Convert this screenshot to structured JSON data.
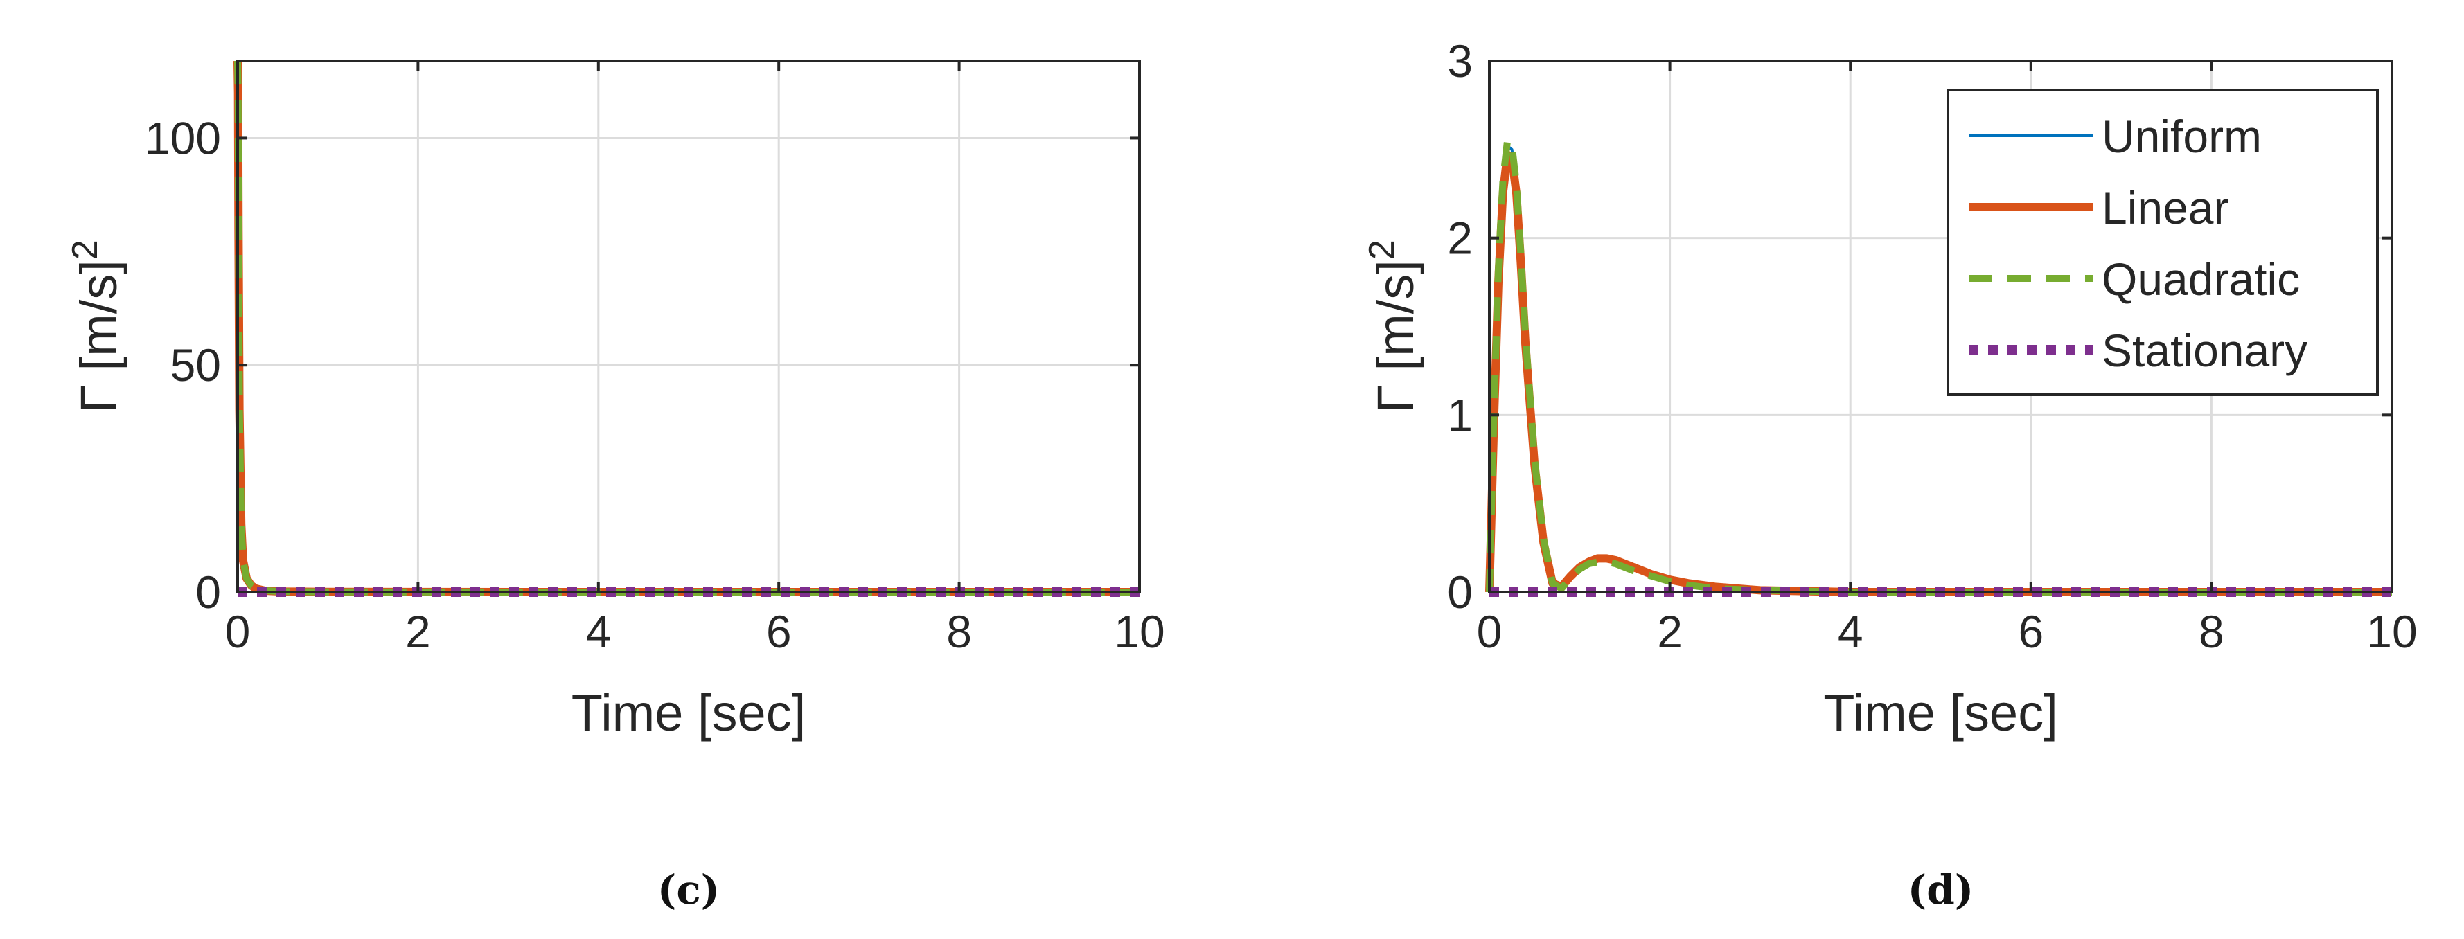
{
  "colors": {
    "uniform": "#0072BD",
    "linear": "#D95319",
    "quadratic": "#77AC30",
    "stationary": "#7E2F8E",
    "grid": "#dcdcdc",
    "axis": "#262626",
    "text": "#262626"
  },
  "chart_data": [
    {
      "type": "line",
      "panel_label": "(c)",
      "xlabel": "Time [sec]",
      "ylabel": "Γ [m/s]",
      "ylabel_superscript": "2",
      "xlim": [
        0,
        10
      ],
      "ylim": [
        0,
        117
      ],
      "xticks": [
        0,
        2,
        4,
        6,
        8,
        10
      ],
      "yticks": [
        0,
        50,
        100
      ],
      "xtick_labels": [
        "0",
        "2",
        "4",
        "6",
        "8",
        "10"
      ],
      "ytick_labels": [
        "0",
        "50",
        "100"
      ],
      "grid": true,
      "legend": false,
      "series": [
        {
          "key": "uniform",
          "style": "solid-thin",
          "x": [
            0,
            0.005,
            0.01,
            0.02,
            0.04,
            0.06,
            0.1,
            0.15,
            0.2,
            0.3,
            0.5,
            1,
            2,
            4,
            6,
            8,
            10
          ],
          "y": [
            117,
            110,
            80,
            40,
            15,
            7,
            3,
            1.5,
            0.8,
            0.3,
            0.1,
            0.05,
            0.02,
            0,
            0,
            0,
            0
          ]
        },
        {
          "key": "linear",
          "style": "solid-thick",
          "x": [
            0,
            0.005,
            0.01,
            0.02,
            0.04,
            0.06,
            0.1,
            0.15,
            0.2,
            0.3,
            0.5,
            1,
            2,
            4,
            6,
            8,
            10
          ],
          "y": [
            117,
            110,
            80,
            40,
            15,
            7,
            3,
            1.5,
            0.8,
            0.3,
            0.1,
            0.05,
            0.02,
            0,
            0,
            0,
            0
          ]
        },
        {
          "key": "quadratic",
          "style": "dashed",
          "x": [
            0,
            0.005,
            0.01,
            0.02,
            0.04,
            0.06,
            0.1,
            0.15,
            0.2,
            0.3,
            0.5,
            1,
            2,
            4,
            6,
            8,
            10
          ],
          "y": [
            117,
            110,
            80,
            40,
            15,
            7,
            3,
            1.5,
            0.8,
            0.3,
            0.1,
            0.05,
            0.02,
            0,
            0,
            0,
            0
          ]
        },
        {
          "key": "stationary",
          "style": "dotted",
          "x": [
            0,
            10
          ],
          "y": [
            0,
            0
          ]
        }
      ]
    },
    {
      "type": "line",
      "panel_label": "(d)",
      "xlabel": "Time [sec]",
      "ylabel": "Γ [m/s]",
      "ylabel_superscript": "2",
      "xlim": [
        0,
        10
      ],
      "ylim": [
        0,
        3
      ],
      "xticks": [
        0,
        2,
        4,
        6,
        8,
        10
      ],
      "yticks": [
        0,
        1,
        2,
        3
      ],
      "xtick_labels": [
        "0",
        "2",
        "4",
        "6",
        "8",
        "10"
      ],
      "ytick_labels": [
        "0",
        "1",
        "2",
        "3"
      ],
      "grid": true,
      "legend": true,
      "legend_position": "top-right",
      "series": [
        {
          "key": "uniform",
          "name": "Uniform",
          "style": "solid-thin",
          "x": [
            0,
            0.05,
            0.1,
            0.15,
            0.2,
            0.25,
            0.3,
            0.35,
            0.4,
            0.5,
            0.6,
            0.7,
            0.8,
            0.9,
            1.0,
            1.1,
            1.2,
            1.3,
            1.4,
            1.5,
            1.6,
            1.8,
            2.0,
            2.2,
            2.5,
            3,
            4,
            6,
            8,
            10
          ],
          "y": [
            0,
            1.0,
            1.8,
            2.3,
            2.52,
            2.5,
            2.3,
            1.9,
            1.45,
            0.75,
            0.3,
            0.05,
            0.02,
            0.08,
            0.13,
            0.16,
            0.18,
            0.18,
            0.17,
            0.15,
            0.13,
            0.09,
            0.06,
            0.04,
            0.02,
            0.01,
            0,
            0,
            0,
            0
          ]
        },
        {
          "key": "linear",
          "name": "Linear",
          "style": "solid-thick",
          "x": [
            0,
            0.05,
            0.1,
            0.15,
            0.2,
            0.25,
            0.3,
            0.35,
            0.4,
            0.5,
            0.6,
            0.7,
            0.8,
            0.9,
            1.0,
            1.1,
            1.2,
            1.3,
            1.4,
            1.5,
            1.6,
            1.8,
            2.0,
            2.2,
            2.5,
            3,
            4,
            6,
            8,
            10
          ],
          "y": [
            0,
            0.95,
            1.75,
            2.25,
            2.47,
            2.45,
            2.25,
            1.85,
            1.4,
            0.72,
            0.28,
            0.05,
            0.03,
            0.09,
            0.14,
            0.17,
            0.19,
            0.19,
            0.18,
            0.16,
            0.14,
            0.1,
            0.07,
            0.05,
            0.03,
            0.01,
            0,
            0,
            0,
            0
          ]
        },
        {
          "key": "quadratic",
          "name": "Quadratic",
          "style": "dashed",
          "x": [
            0,
            0.05,
            0.1,
            0.15,
            0.2,
            0.25,
            0.3,
            0.35,
            0.4,
            0.5,
            0.6,
            0.7,
            0.8,
            0.9,
            1.0,
            1.1,
            1.2,
            1.3,
            1.4,
            1.5,
            1.6,
            1.8,
            2.0,
            2.2,
            2.5,
            3,
            4,
            6,
            8,
            10
          ],
          "y": [
            0,
            1.0,
            1.82,
            2.32,
            2.55,
            2.52,
            2.3,
            1.9,
            1.45,
            0.75,
            0.3,
            0.05,
            0.02,
            0.08,
            0.13,
            0.16,
            0.17,
            0.17,
            0.16,
            0.14,
            0.12,
            0.09,
            0.06,
            0.04,
            0.02,
            0.01,
            0,
            0,
            0,
            0
          ]
        },
        {
          "key": "stationary",
          "name": "Stationary",
          "style": "dotted",
          "x": [
            0,
            10
          ],
          "y": [
            0,
            0
          ]
        }
      ]
    }
  ]
}
